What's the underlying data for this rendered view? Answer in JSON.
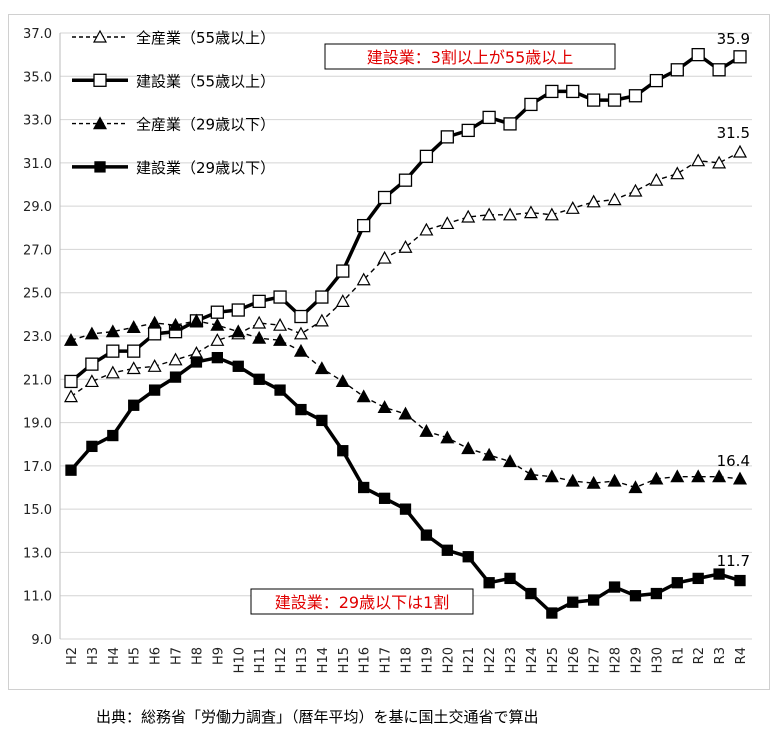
{
  "chart_data": {
    "type": "line",
    "categories": [
      "H2",
      "H3",
      "H4",
      "H5",
      "H6",
      "H7",
      "H8",
      "H9",
      "H10",
      "H11",
      "H12",
      "H13",
      "H14",
      "H15",
      "H16",
      "H17",
      "H18",
      "H19",
      "H20",
      "H21",
      "H22",
      "H23",
      "H24",
      "H25",
      "H26",
      "H27",
      "H28",
      "H29",
      "H30",
      "R1",
      "R2",
      "R3",
      "R4"
    ],
    "ylim": [
      9.0,
      37.0
    ],
    "yticks": [
      "9.0",
      "11.0",
      "13.0",
      "15.0",
      "17.0",
      "19.0",
      "21.0",
      "23.0",
      "25.0",
      "27.0",
      "29.0",
      "31.0",
      "33.0",
      "35.0",
      "37.0"
    ],
    "grid": true,
    "legend_position": "top-left",
    "series": [
      {
        "name": "全産業（55歳以上）",
        "style": "dashed",
        "marker": "open-triangle",
        "values": [
          20.2,
          20.9,
          21.3,
          21.5,
          21.6,
          21.9,
          22.2,
          22.8,
          23.1,
          23.6,
          23.5,
          23.1,
          23.7,
          24.6,
          25.6,
          26.6,
          27.1,
          27.9,
          28.2,
          28.5,
          28.6,
          28.6,
          28.7,
          28.6,
          28.9,
          29.2,
          29.3,
          29.7,
          30.2,
          30.5,
          31.1,
          31.0,
          31.5
        ]
      },
      {
        "name": "建設業（55歳以上）",
        "style": "solid",
        "marker": "open-square",
        "values": [
          20.9,
          21.7,
          22.3,
          22.3,
          23.1,
          23.2,
          23.7,
          24.1,
          24.2,
          24.6,
          24.8,
          23.9,
          24.8,
          26.0,
          28.1,
          29.4,
          30.2,
          31.3,
          32.2,
          32.5,
          33.1,
          32.8,
          33.7,
          34.3,
          34.3,
          33.9,
          33.9,
          34.1,
          34.8,
          35.3,
          36.0,
          35.3,
          35.9
        ]
      },
      {
        "name": "全産業（29歳以下）",
        "style": "dashed",
        "marker": "filled-triangle",
        "values": [
          22.8,
          23.1,
          23.2,
          23.4,
          23.6,
          23.5,
          23.7,
          23.5,
          23.2,
          22.9,
          22.8,
          22.3,
          21.5,
          20.9,
          20.2,
          19.7,
          19.4,
          18.6,
          18.3,
          17.8,
          17.5,
          17.2,
          16.6,
          16.5,
          16.3,
          16.2,
          16.3,
          16.0,
          16.4,
          16.5,
          16.5,
          16.5,
          16.4
        ]
      },
      {
        "name": "建設業（29歳以下）",
        "style": "solid",
        "marker": "filled-square",
        "values": [
          16.8,
          17.9,
          18.4,
          19.8,
          20.5,
          21.1,
          21.8,
          22.0,
          21.6,
          21.0,
          20.5,
          19.6,
          19.1,
          17.7,
          16.0,
          15.5,
          15.0,
          13.8,
          13.1,
          12.8,
          11.6,
          11.8,
          11.1,
          10.2,
          10.7,
          10.8,
          11.4,
          11.0,
          11.1,
          11.6,
          11.8,
          12.0,
          11.7
        ]
      }
    ],
    "data_labels": [
      "31.5",
      "35.9",
      "16.4",
      "11.7"
    ],
    "annotations": [
      "建設業：3割以上が55歳以上",
      "建設業：29歳以下は1割"
    ],
    "annotation_color": "#e00000"
  },
  "source": "出典：総務省「労働力調査」（暦年平均）を基に国土交通省で算出"
}
